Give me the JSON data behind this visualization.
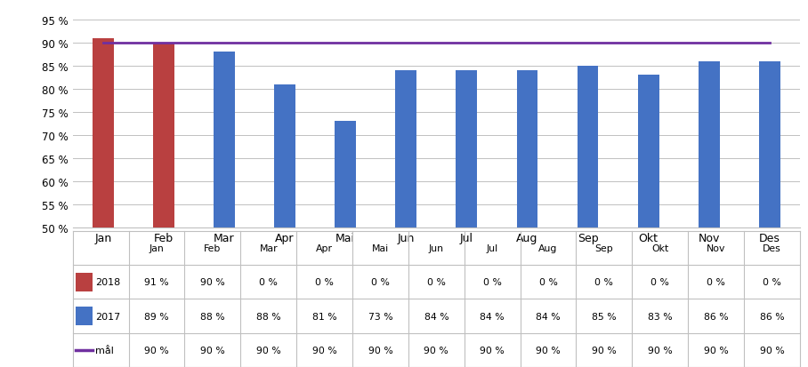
{
  "months": [
    "Jan",
    "Feb",
    "Mar",
    "Apr",
    "Mai",
    "Jun",
    "Jul",
    "Aug",
    "Sep",
    "Okt",
    "Nov",
    "Des"
  ],
  "series_2018": [
    0.91,
    0.9,
    0.0,
    0.0,
    0.0,
    0.0,
    0.0,
    0.0,
    0.0,
    0.0,
    0.0,
    0.0
  ],
  "series_2017": [
    0.89,
    0.88,
    0.88,
    0.81,
    0.73,
    0.84,
    0.84,
    0.84,
    0.85,
    0.83,
    0.86,
    0.86
  ],
  "series_mal": [
    0.9,
    0.9,
    0.9,
    0.9,
    0.9,
    0.9,
    0.9,
    0.9,
    0.9,
    0.9,
    0.9,
    0.9
  ],
  "labels_2018": [
    "91 %",
    "90 %",
    "0 %",
    "0 %",
    "0 %",
    "0 %",
    "0 %",
    "0 %",
    "0 %",
    "0 %",
    "0 %",
    "0 %"
  ],
  "labels_2017": [
    "89 %",
    "88 %",
    "88 %",
    "81 %",
    "73 %",
    "84 %",
    "84 %",
    "84 %",
    "85 %",
    "83 %",
    "86 %",
    "86 %"
  ],
  "labels_mal": [
    "90 %",
    "90 %",
    "90 %",
    "90 %",
    "90 %",
    "90 %",
    "90 %",
    "90 %",
    "90 %",
    "90 %",
    "90 %",
    "90 %"
  ],
  "color_2018": "#b94040",
  "color_2017": "#4472c4",
  "color_mal": "#7030a0",
  "ylim_min": 0.5,
  "ylim_max": 0.97,
  "yticks": [
    0.5,
    0.55,
    0.6,
    0.65,
    0.7,
    0.75,
    0.8,
    0.85,
    0.9,
    0.95
  ],
  "ytick_labels": [
    "50 %",
    "55 %",
    "60 %",
    "65 %",
    "70 %",
    "75 %",
    "80 %",
    "85 %",
    "90 %",
    "95 %"
  ],
  "bar_width": 0.35,
  "background_color": "#ffffff",
  "grid_color": "#c0c0c0",
  "table_row_labels": [
    "2018",
    "2017",
    "mål"
  ]
}
